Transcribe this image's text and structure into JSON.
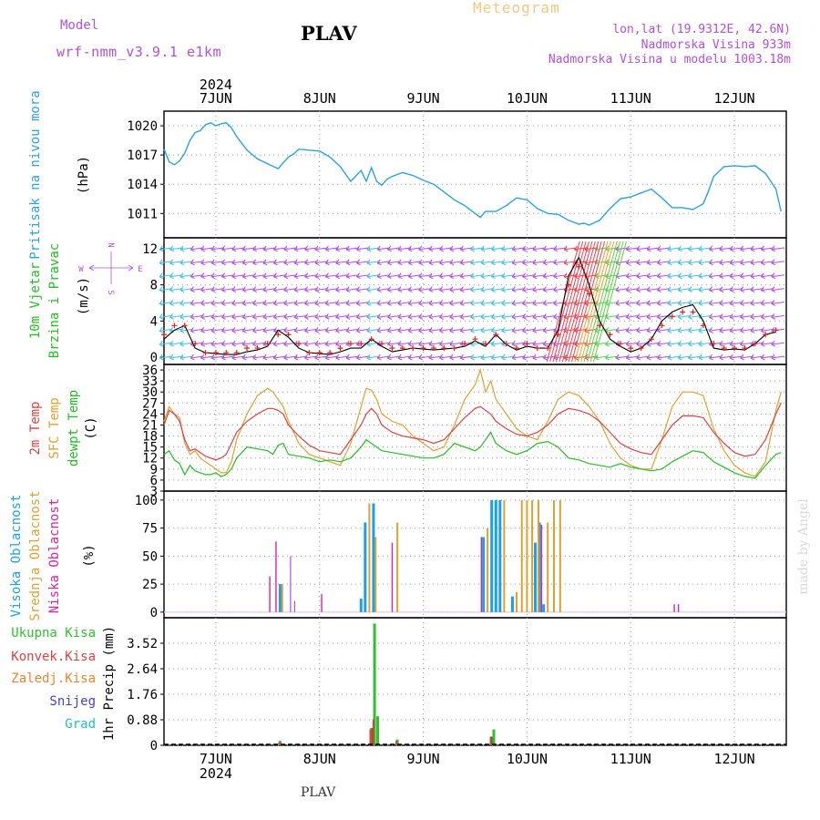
{
  "header": {
    "model_label": "Model",
    "model_name": "wrf-nmm_v3.9.1 e1km",
    "station": "PLAV",
    "meteogram": "Meteogram",
    "lonlat": "lon,lat (19.9312E, 42.6N)",
    "elevation": "Nadmorska Visina 933m",
    "model_elevation": "Nadmorska Visina u modelu 1003.18m",
    "watermark": "made by Angel",
    "footer": "PLAV"
  },
  "colors": {
    "pressure": "#29a3e0",
    "temp2m": "#e04040",
    "sfc": "#e0a030",
    "dewpt": "#20c020",
    "high_cloud": "#1ca0e8",
    "mid_cloud": "#e0a030",
    "low_cloud": "#e020a0",
    "total_precip": "#30c030",
    "conv_precip": "#e04040",
    "frozen": "#f08030",
    "snow": "#4040e0",
    "hail": "#20c0c0",
    "purple": "#b050e0"
  },
  "chart_data": [
    {
      "type": "line",
      "name": "pressure",
      "y_title": "Pritisak na nivou mora",
      "unit": "(hPa)",
      "x_days": [
        "7JUN",
        "8JUN",
        "9JUN",
        "10JUN",
        "11JUN",
        "12JUN"
      ],
      "x_year": "2024",
      "ylim": [
        1008.5,
        1021.5
      ],
      "yticks": [
        1011,
        1014,
        1017,
        1020
      ],
      "x": [
        6.5,
        6.55,
        6.6,
        6.65,
        6.7,
        6.75,
        6.8,
        6.85,
        6.9,
        6.95,
        7.0,
        7.05,
        7.1,
        7.15,
        7.2,
        7.3,
        7.4,
        7.5,
        7.6,
        7.7,
        7.75,
        7.8,
        7.9,
        8.0,
        8.1,
        8.2,
        8.3,
        8.4,
        8.45,
        8.5,
        8.55,
        8.6,
        8.65,
        8.7,
        8.8,
        8.9,
        9.0,
        9.1,
        9.2,
        9.3,
        9.4,
        9.5,
        9.55,
        9.6,
        9.7,
        9.8,
        9.9,
        10.0,
        10.1,
        10.2,
        10.3,
        10.4,
        10.5,
        10.55,
        10.6,
        10.7,
        10.8,
        10.9,
        11.0,
        11.1,
        11.2,
        11.3,
        11.4,
        11.5,
        11.6,
        11.7,
        11.75,
        11.8,
        11.9,
        12.0,
        12.1,
        12.2,
        12.3,
        12.4,
        12.45
      ],
      "y": [
        1017.6,
        1016.3,
        1016.0,
        1016.4,
        1017.2,
        1018.5,
        1019.3,
        1019.5,
        1020.1,
        1020.3,
        1020.0,
        1020.2,
        1020.3,
        1019.8,
        1018.9,
        1017.5,
        1016.6,
        1016.1,
        1015.6,
        1016.8,
        1017.1,
        1017.6,
        1017.5,
        1017.4,
        1016.8,
        1015.8,
        1014.3,
        1015.4,
        1014.3,
        1015.7,
        1014.3,
        1013.9,
        1014.5,
        1014.8,
        1015.2,
        1014.9,
        1014.4,
        1014.0,
        1013.2,
        1012.4,
        1011.8,
        1011.0,
        1010.6,
        1011.2,
        1011.2,
        1011.8,
        1012.6,
        1012.4,
        1011.5,
        1011.0,
        1010.9,
        1010.3,
        1009.9,
        1010.0,
        1009.8,
        1010.3,
        1011.5,
        1012.5,
        1012.7,
        1013.1,
        1013.5,
        1012.6,
        1011.6,
        1011.6,
        1011.4,
        1012.0,
        1013.3,
        1014.8,
        1015.8,
        1015.9,
        1015.8,
        1015.9,
        1015.1,
        1013.5,
        1011.2
      ]
    },
    {
      "type": "line",
      "name": "wind",
      "y_title_1": "10m Vjetar",
      "y_title_2": "Brzina i Pravac",
      "unit": "(m/s)",
      "compass": {
        "n": "N",
        "s": "S",
        "e": "E",
        "w": "W"
      },
      "ylim": [
        -0.8,
        13.2
      ],
      "yticks": [
        0,
        4,
        8,
        12
      ],
      "x": [
        6.5,
        6.6,
        6.7,
        6.8,
        6.9,
        7.0,
        7.1,
        7.2,
        7.3,
        7.4,
        7.5,
        7.6,
        7.7,
        7.8,
        7.9,
        8.0,
        8.1,
        8.2,
        8.3,
        8.4,
        8.5,
        8.6,
        8.7,
        8.8,
        8.9,
        9.0,
        9.1,
        9.2,
        9.3,
        9.4,
        9.5,
        9.6,
        9.7,
        9.8,
        9.9,
        10.0,
        10.1,
        10.2,
        10.3,
        10.4,
        10.5,
        10.6,
        10.7,
        10.8,
        10.9,
        11.0,
        11.1,
        11.2,
        11.3,
        11.4,
        11.5,
        11.6,
        11.7,
        11.8,
        11.9,
        12.0,
        12.1,
        12.2,
        12.3,
        12.4
      ],
      "speed": [
        2.0,
        3.0,
        3.5,
        1.0,
        0.5,
        0.4,
        0.3,
        0.3,
        0.6,
        0.8,
        1.2,
        3.0,
        2.2,
        1.0,
        0.5,
        0.4,
        0.3,
        0.6,
        1.0,
        1.0,
        2.0,
        1.2,
        0.6,
        0.8,
        1.0,
        0.9,
        0.8,
        0.9,
        1.0,
        1.2,
        1.8,
        1.2,
        2.5,
        1.4,
        0.8,
        1.2,
        1.0,
        1.0,
        3.0,
        9.0,
        11.0,
        8.0,
        4.0,
        2.0,
        1.2,
        0.6,
        1.0,
        2.0,
        4.0,
        5.0,
        5.5,
        5.8,
        4.0,
        1.0,
        0.8,
        0.9,
        0.8,
        1.5,
        2.5,
        2.8
      ],
      "gust": [
        2.5,
        3.5,
        3.5,
        1.5,
        0.5,
        0.5,
        0.5,
        0.5,
        1.0,
        1.0,
        1.5,
        2.5,
        2.5,
        1.5,
        0.5,
        0.5,
        0.5,
        1.0,
        1.5,
        1.5,
        2.0,
        1.5,
        1.0,
        1.0,
        1.0,
        1.0,
        1.0,
        1.0,
        1.0,
        1.5,
        2.0,
        1.5,
        2.5,
        1.5,
        1.0,
        1.5,
        1.0,
        1.0,
        2.5,
        8.0,
        10.0,
        7.0,
        3.5,
        2.5,
        1.5,
        1.0,
        1.0,
        2.0,
        3.5,
        4.5,
        5.0,
        5.0,
        3.5,
        1.5,
        1.0,
        1.0,
        1.0,
        1.5,
        2.5,
        3.0
      ]
    },
    {
      "type": "line",
      "name": "temperature",
      "y_title_1": "2m Temp",
      "y_title_2": "SFC Temp",
      "y_title_3": "dewpt Temp",
      "unit": "(C)",
      "ylim": [
        3,
        37.5
      ],
      "yticks": [
        3,
        6,
        9,
        12,
        15,
        18,
        21,
        24,
        27,
        30,
        33,
        36
      ],
      "x": [
        6.5,
        6.55,
        6.6,
        6.65,
        6.7,
        6.75,
        6.8,
        6.85,
        6.9,
        6.95,
        7.0,
        7.05,
        7.1,
        7.15,
        7.2,
        7.3,
        7.4,
        7.5,
        7.55,
        7.6,
        7.65,
        7.7,
        7.8,
        7.9,
        8.0,
        8.1,
        8.2,
        8.3,
        8.4,
        8.45,
        8.5,
        8.55,
        8.6,
        8.7,
        8.8,
        8.9,
        9.0,
        9.1,
        9.2,
        9.3,
        9.4,
        9.5,
        9.55,
        9.6,
        9.65,
        9.7,
        9.8,
        9.9,
        10.0,
        10.1,
        10.2,
        10.3,
        10.4,
        10.5,
        10.6,
        10.7,
        10.8,
        10.9,
        11.0,
        11.1,
        11.2,
        11.3,
        11.4,
        11.5,
        11.6,
        11.7,
        11.8,
        11.9,
        12.0,
        12.1,
        12.2,
        12.3,
        12.4,
        12.45
      ],
      "t2m": [
        21.0,
        25.0,
        24.0,
        22.0,
        17.0,
        14.0,
        14.5,
        13.5,
        12.5,
        12.0,
        11.5,
        12.0,
        13.0,
        16.0,
        19.0,
        22.0,
        24.0,
        25.5,
        25.5,
        25.0,
        24.0,
        21.0,
        18.0,
        15.5,
        14.0,
        13.5,
        13.0,
        17.0,
        21.0,
        24.0,
        25.5,
        24.0,
        21.0,
        19.0,
        18.0,
        17.5,
        17.0,
        16.0,
        17.0,
        20.0,
        23.0,
        25.5,
        26.0,
        25.0,
        24.0,
        22.0,
        20.0,
        18.5,
        18.0,
        19.0,
        21.0,
        24.0,
        25.5,
        25.0,
        24.0,
        22.0,
        19.0,
        16.0,
        14.5,
        13.5,
        13.0,
        17.0,
        21.0,
        23.5,
        23.5,
        23.0,
        19.0,
        16.0,
        13.5,
        12.5,
        13.0,
        17.0,
        24.0,
        27.0
      ],
      "sfc": [
        22.0,
        26.0,
        24.0,
        23.0,
        16.0,
        13.0,
        14.0,
        12.0,
        11.0,
        10.0,
        9.0,
        8.0,
        8.0,
        11.0,
        17.0,
        24.0,
        29.0,
        31.0,
        30.0,
        28.0,
        26.0,
        22.0,
        16.0,
        13.0,
        12.0,
        11.0,
        10.0,
        16.0,
        26.0,
        31.0,
        30.5,
        28.0,
        24.0,
        22.0,
        21.0,
        18.0,
        16.0,
        14.0,
        15.0,
        21.0,
        28.0,
        32.0,
        36.0,
        30.0,
        33.0,
        28.0,
        24.0,
        20.0,
        18.0,
        17.0,
        22.0,
        28.0,
        30.0,
        29.0,
        26.0,
        22.0,
        16.0,
        12.0,
        10.0,
        9.0,
        9.0,
        17.0,
        26.0,
        30.0,
        30.0,
        29.0,
        20.0,
        14.0,
        10.0,
        8.0,
        7.0,
        11.0,
        25.0,
        30.0
      ],
      "dewpt": [
        13.0,
        14.0,
        11.5,
        10.5,
        7.5,
        10.0,
        8.5,
        8.0,
        7.5,
        7.5,
        8.0,
        7.0,
        7.5,
        9.0,
        12.0,
        15.0,
        14.5,
        14.0,
        13.0,
        15.5,
        16.0,
        13.0,
        12.5,
        12.0,
        11.0,
        11.5,
        11.0,
        12.0,
        15.0,
        17.0,
        16.0,
        15.0,
        14.0,
        13.5,
        13.0,
        12.5,
        12.0,
        12.0,
        13.0,
        16.0,
        15.0,
        14.0,
        15.0,
        17.0,
        19.0,
        16.0,
        14.0,
        13.0,
        14.0,
        16.0,
        16.5,
        15.0,
        12.0,
        11.5,
        10.5,
        10.0,
        9.5,
        10.5,
        9.5,
        9.0,
        8.5,
        9.0,
        11.0,
        12.5,
        14.0,
        13.5,
        11.0,
        9.5,
        8.0,
        7.0,
        6.5,
        10.0,
        13.0,
        13.5
      ]
    },
    {
      "type": "bar",
      "name": "cloud",
      "y_title_1": "Visoka Oblacnost",
      "y_title_2": "Srednja Oblacnost",
      "y_title_3": "Niska Oblacnost",
      "unit": "(%)",
      "ylim": [
        -5,
        108
      ],
      "yticks": [
        0,
        25,
        50,
        75,
        100
      ],
      "high": [
        {
          "x": 7.62,
          "v": 25
        },
        {
          "x": 8.4,
          "v": 12
        },
        {
          "x": 8.44,
          "v": 80
        },
        {
          "x": 8.52,
          "v": 97
        },
        {
          "x": 9.58,
          "v": 67
        },
        {
          "x": 9.66,
          "v": 100
        },
        {
          "x": 9.7,
          "v": 100
        },
        {
          "x": 9.74,
          "v": 100
        },
        {
          "x": 9.86,
          "v": 14
        },
        {
          "x": 10.08,
          "v": 62
        },
        {
          "x": 10.12,
          "v": 80
        },
        {
          "x": 10.16,
          "v": 7
        }
      ],
      "mid": [
        {
          "x": 7.64,
          "v": 25
        },
        {
          "x": 8.48,
          "v": 97
        },
        {
          "x": 8.54,
          "v": 67
        },
        {
          "x": 8.75,
          "v": 80
        },
        {
          "x": 9.62,
          "v": 75
        },
        {
          "x": 9.78,
          "v": 100
        },
        {
          "x": 9.9,
          "v": 18
        },
        {
          "x": 9.95,
          "v": 100
        },
        {
          "x": 10.0,
          "v": 100
        },
        {
          "x": 10.05,
          "v": 100
        },
        {
          "x": 10.11,
          "v": 100
        },
        {
          "x": 10.2,
          "v": 80
        },
        {
          "x": 10.26,
          "v": 100
        },
        {
          "x": 10.32,
          "v": 100
        }
      ],
      "low": [
        {
          "x": 7.52,
          "v": 32
        },
        {
          "x": 7.58,
          "v": 63
        },
        {
          "x": 8.02,
          "v": 16
        },
        {
          "x": 8.7,
          "v": 62
        },
        {
          "x": 9.56,
          "v": 67
        },
        {
          "x": 10.14,
          "v": 78
        },
        {
          "x": 11.42,
          "v": 7
        },
        {
          "x": 11.46,
          "v": 7
        }
      ],
      "lowpurple": [
        {
          "x": 7.72,
          "v": 50
        },
        {
          "x": 7.76,
          "v": 10
        }
      ]
    },
    {
      "type": "bar",
      "name": "precip",
      "legend": [
        "Ukupna Kisa",
        "Konvek.Kisa",
        "Zaledj.Kisa",
        "Snijeg",
        "Grad"
      ],
      "unit": "1hr Precip (mm)",
      "ylim": [
        0,
        4.4
      ],
      "yticks": [
        0,
        0.88,
        1.76,
        2.64,
        3.52
      ],
      "yticklabels": [
        "0",
        "0.88",
        "1.76",
        "2.64",
        "3.52"
      ],
      "total": [
        {
          "x": 7.62,
          "v": 0.15
        },
        {
          "x": 8.5,
          "v": 0.6
        },
        {
          "x": 8.53,
          "v": 4.2
        },
        {
          "x": 8.56,
          "v": 1.0
        },
        {
          "x": 8.75,
          "v": 0.2
        },
        {
          "x": 9.68,
          "v": 0.55
        }
      ],
      "conv": [
        {
          "x": 8.49,
          "v": 0.55
        },
        {
          "x": 8.52,
          "v": 0.9
        },
        {
          "x": 8.74,
          "v": 0.15
        },
        {
          "x": 9.65,
          "v": 0.3
        },
        {
          "x": 7.61,
          "v": 0.1
        }
      ],
      "frozen": [
        {
          "x": 8.51,
          "v": 0.6
        },
        {
          "x": 9.66,
          "v": 0.3
        }
      ]
    }
  ]
}
